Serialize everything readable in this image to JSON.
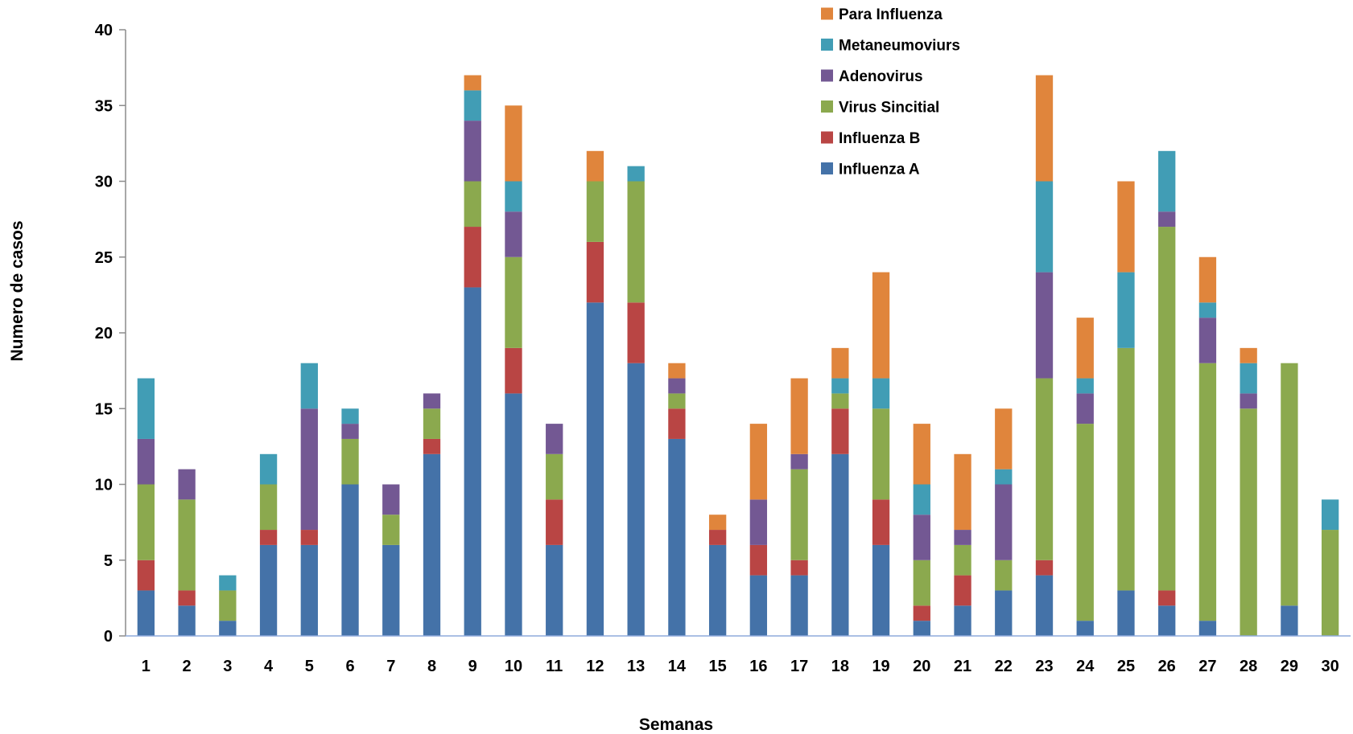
{
  "chart_data": {
    "type": "bar",
    "stacked": true,
    "categories": [
      "1",
      "2",
      "3",
      "4",
      "5",
      "6",
      "7",
      "8",
      "9",
      "10",
      "11",
      "12",
      "13",
      "14",
      "15",
      "16",
      "17",
      "18",
      "19",
      "20",
      "21",
      "22",
      "23",
      "24",
      "25",
      "26",
      "27",
      "28",
      "29",
      "30"
    ],
    "series": [
      {
        "name": "Influenza A",
        "color": "#4472A8",
        "values": [
          3,
          2,
          1,
          6,
          6,
          10,
          6,
          12,
          23,
          16,
          6,
          22,
          18,
          13,
          6,
          4,
          4,
          12,
          6,
          1,
          2,
          3,
          4,
          1,
          3,
          2,
          1,
          0,
          2,
          0
        ]
      },
      {
        "name": "Influenza B",
        "color": "#B94544",
        "values": [
          2,
          1,
          0,
          1,
          1,
          0,
          0,
          1,
          4,
          3,
          3,
          4,
          4,
          2,
          1,
          2,
          1,
          3,
          3,
          1,
          2,
          0,
          1,
          0,
          0,
          1,
          0,
          0,
          0,
          0
        ]
      },
      {
        "name": "Virus Sincitial",
        "color": "#8BA94E",
        "values": [
          5,
          6,
          2,
          3,
          0,
          3,
          2,
          2,
          3,
          6,
          3,
          4,
          8,
          1,
          0,
          0,
          6,
          1,
          6,
          3,
          2,
          2,
          12,
          13,
          16,
          24,
          17,
          15,
          16,
          7
        ]
      },
      {
        "name": "Adenovirus",
        "color": "#735893",
        "values": [
          3,
          2,
          0,
          0,
          8,
          1,
          2,
          1,
          4,
          3,
          2,
          0,
          0,
          1,
          0,
          3,
          1,
          0,
          0,
          3,
          1,
          5,
          7,
          2,
          0,
          1,
          3,
          1,
          0,
          0
        ]
      },
      {
        "name": "Metaneumoviurs",
        "color": "#419DB5",
        "values": [
          4,
          0,
          1,
          2,
          3,
          1,
          0,
          0,
          2,
          2,
          0,
          0,
          1,
          0,
          0,
          0,
          0,
          1,
          2,
          2,
          0,
          1,
          6,
          1,
          5,
          4,
          1,
          2,
          0,
          2
        ]
      },
      {
        "name": "Para Influenza",
        "color": "#E0853C",
        "values": [
          0,
          0,
          0,
          0,
          0,
          0,
          0,
          0,
          1,
          5,
          0,
          2,
          0,
          1,
          1,
          5,
          5,
          2,
          7,
          4,
          5,
          4,
          7,
          4,
          6,
          0,
          3,
          1,
          0,
          0
        ]
      }
    ],
    "xlabel": "Semanas",
    "ylabel": "Numero de casos",
    "ylim": [
      0,
      40
    ],
    "yticks": [
      "0",
      "5",
      "10",
      "15",
      "20",
      "25",
      "30",
      "35",
      "40"
    ],
    "grid": false,
    "legend": "top-right"
  }
}
